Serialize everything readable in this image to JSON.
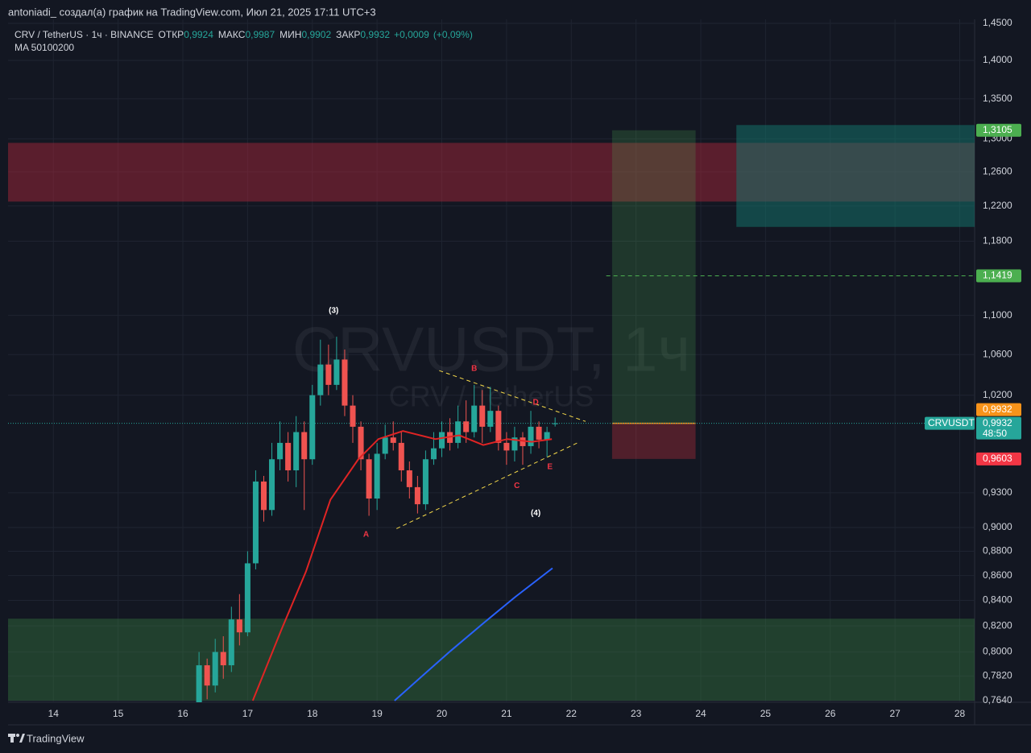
{
  "header": "antoniadi_ создал(а) график на TradingView.com, Июл 21, 2025 17:11 UTC+3",
  "footer": "TradingView",
  "chart_data": {
    "type": "candlestick",
    "title": "CRV / TetherUS · 1ч · BINANCE",
    "stats": [
      {
        "name": "ОТКР",
        "value": 0.9924,
        "label": "0,9924"
      },
      {
        "name": "МАКС",
        "value": 0.9987,
        "label": "0,9987"
      },
      {
        "name": "МИН",
        "value": 0.9902,
        "label": "0,9902"
      },
      {
        "name": "ЗАКР",
        "value": 0.9932,
        "label": "0,9932"
      }
    ],
    "change": [
      {
        "value": 0.0009,
        "label": "+0,0009"
      },
      {
        "value": 0.09,
        "label": "(+0,09%)"
      }
    ],
    "indicator": "MA 50100200",
    "watermark": "CRVUSDT, 1ч",
    "watermark_sub": "CRV / TetherUS",
    "log_scale": true,
    "grid": true,
    "up_color": "#26a69a",
    "down_color": "#ef5350",
    "xlim": [
      13.3,
      28.23
    ],
    "xticks": [
      14,
      15,
      16,
      17,
      18,
      19,
      20,
      21,
      22,
      23,
      24,
      25,
      26,
      27,
      28
    ],
    "ylim": [
      0.764,
      1.45
    ],
    "yticks": [
      {
        "value": 1.45,
        "label": "1,4500"
      },
      {
        "value": 1.4,
        "label": "1,4000"
      },
      {
        "value": 1.35,
        "label": "1,3500"
      },
      {
        "value": 1.3,
        "label": "1,3000"
      },
      {
        "value": 1.26,
        "label": "1,2600"
      },
      {
        "value": 1.22,
        "label": "1,2200"
      },
      {
        "value": 1.18,
        "label": "1,1800"
      },
      {
        "value": 1.1,
        "label": "1,1000"
      },
      {
        "value": 1.06,
        "label": "1,0600"
      },
      {
        "value": 1.02,
        "label": "1,0200"
      },
      {
        "value": 0.93,
        "label": "0,9300"
      },
      {
        "value": 0.9,
        "label": "0,9000"
      },
      {
        "value": 0.88,
        "label": "0,8800"
      },
      {
        "value": 0.86,
        "label": "0,8600"
      },
      {
        "value": 0.84,
        "label": "0,8400"
      },
      {
        "value": 0.82,
        "label": "0,8200"
      },
      {
        "value": 0.8,
        "label": "0,8000"
      },
      {
        "value": 0.782,
        "label": "0,7820"
      },
      {
        "value": 0.764,
        "label": "0,7640"
      }
    ],
    "candles": {
      "x": [
        16.25,
        16.375,
        16.5,
        16.625,
        16.75,
        16.875,
        17.0,
        17.125,
        17.25,
        17.375,
        17.5,
        17.625,
        17.75,
        17.875,
        18.0,
        18.125,
        18.25,
        18.375,
        18.5,
        18.625,
        18.75,
        18.875,
        19.0,
        19.125,
        19.25,
        19.375,
        19.5,
        19.625,
        19.75,
        19.875,
        20.0,
        20.125,
        20.25,
        20.375,
        20.5,
        20.625,
        20.75,
        20.875,
        21.0,
        21.125,
        21.25,
        21.375,
        21.5,
        21.625,
        21.75
      ],
      "open": [
        0.755,
        0.79,
        0.775,
        0.8,
        0.79,
        0.825,
        0.815,
        0.87,
        0.94,
        0.915,
        0.96,
        0.975,
        0.95,
        0.985,
        0.96,
        1.02,
        1.05,
        1.03,
        1.055,
        1.01,
        0.99,
        0.96,
        0.925,
        0.965,
        0.98,
        0.975,
        0.95,
        0.935,
        0.92,
        0.96,
        0.97,
        0.985,
        0.975,
        0.995,
        0.985,
        1.01,
        0.99,
        1.005,
        0.975,
        0.968,
        0.98,
        0.972,
        0.99,
        0.978,
        0.9924
      ],
      "high": [
        0.8,
        0.795,
        0.81,
        0.812,
        0.835,
        0.845,
        0.88,
        0.95,
        0.945,
        0.975,
        0.995,
        0.985,
        1.0,
        0.995,
        1.03,
        1.075,
        1.07,
        1.078,
        1.065,
        1.02,
        0.995,
        0.965,
        0.975,
        0.992,
        0.995,
        0.985,
        0.958,
        0.945,
        0.968,
        0.985,
        0.995,
        0.998,
        1.01,
        1.015,
        1.03,
        1.025,
        1.028,
        1.01,
        0.985,
        0.99,
        0.985,
        1.005,
        0.995,
        0.99,
        0.9987
      ],
      "low": [
        0.75,
        0.765,
        0.77,
        0.78,
        0.785,
        0.805,
        0.812,
        0.865,
        0.905,
        0.91,
        0.95,
        0.94,
        0.935,
        0.915,
        0.955,
        1.01,
        1.02,
        1.025,
        1.0,
        0.975,
        0.95,
        0.91,
        0.915,
        0.96,
        0.968,
        0.94,
        0.925,
        0.912,
        0.915,
        0.955,
        0.962,
        0.968,
        0.97,
        0.975,
        0.98,
        0.975,
        0.985,
        0.968,
        0.955,
        0.958,
        0.955,
        0.965,
        0.97,
        0.962,
        0.9902
      ],
      "close": [
        0.79,
        0.775,
        0.8,
        0.79,
        0.825,
        0.815,
        0.87,
        0.94,
        0.915,
        0.96,
        0.975,
        0.95,
        0.985,
        0.96,
        1.02,
        1.05,
        1.03,
        1.055,
        1.01,
        0.99,
        0.96,
        0.925,
        0.965,
        0.98,
        0.975,
        0.95,
        0.935,
        0.92,
        0.96,
        0.97,
        0.985,
        0.975,
        0.995,
        0.985,
        1.01,
        0.99,
        1.005,
        0.975,
        0.968,
        0.98,
        0.972,
        0.99,
        0.978,
        0.985,
        0.9932
      ]
    },
    "series": [
      {
        "color": "#e02424",
        "x": [
          17.08,
          17.53,
          17.9,
          18.28,
          18.71,
          19.02,
          19.4,
          19.9,
          20.27,
          20.64,
          21.01,
          21.39,
          21.7
        ],
        "values": [
          0.764,
          0.818,
          0.863,
          0.924,
          0.96,
          0.9785,
          0.986,
          0.9785,
          0.982,
          0.973,
          0.9785,
          0.976,
          0.9785
        ]
      },
      {
        "color": "#2962ff",
        "x": [
          19.27,
          19.65,
          20.14,
          20.64,
          21.14,
          21.71
        ],
        "values": [
          0.764,
          0.78,
          0.801,
          0.822,
          0.843,
          0.866
        ]
      }
    ],
    "zones": [
      {
        "y": [
          1.225,
          1.295
        ],
        "color": "rgba(178,40,60,0.45)"
      },
      {
        "y": [
          0.764,
          0.8256
        ],
        "color": "rgba(60,140,70,0.35)"
      },
      {
        "x": [
          24.55,
          28.23
        ],
        "y": [
          1.196,
          1.317
        ],
        "color": "rgba(20,120,110,0.5)"
      }
    ],
    "position": {
      "x": [
        22.63,
        23.92
      ],
      "entry": {
        "value": 0.9932,
        "label": "0,9932"
      },
      "stop": {
        "value": 0.9603,
        "label": "0,9603"
      },
      "target": {
        "value": 1.3105,
        "label": "1,3105"
      }
    },
    "level": {
      "value": 1.1419,
      "label": "1,1419",
      "x_start": 22.54
    },
    "last": {
      "value": 0.9932,
      "label": "0,9932",
      "countdown": "48:50",
      "symbol": "CRVUSDT"
    },
    "trendlines": [
      {
        "x": [
          19.96,
          22.22
        ],
        "y": [
          1.044,
          0.995
        ],
        "color": "#f5d94a"
      },
      {
        "x": [
          19.3,
          22.13
        ],
        "y": [
          0.899,
          0.976
        ],
        "color": "#f5d94a"
      }
    ],
    "annotations": [
      {
        "text": "(3)",
        "x": 18.33,
        "y": 1.105,
        "color": "#ffffff"
      },
      {
        "text": "A",
        "x": 18.83,
        "y": 0.894,
        "color": "#f23645"
      },
      {
        "text": "B",
        "x": 20.5,
        "y": 1.046,
        "color": "#f23645"
      },
      {
        "text": "C",
        "x": 21.16,
        "y": 0.936,
        "color": "#f23645"
      },
      {
        "text": "D",
        "x": 21.45,
        "y": 1.013,
        "color": "#f23645"
      },
      {
        "text": "E",
        "x": 21.67,
        "y": 0.953,
        "color": "#f23645"
      },
      {
        "text": "(4)",
        "x": 21.45,
        "y": 0.912,
        "color": "#ffffff"
      }
    ]
  }
}
